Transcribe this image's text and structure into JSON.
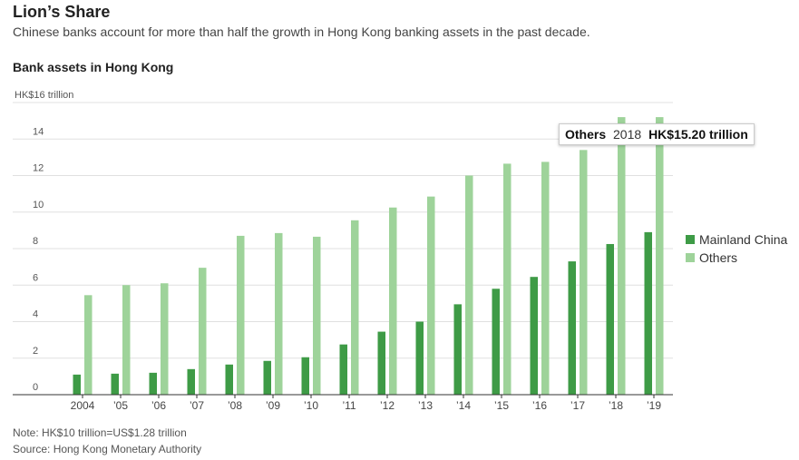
{
  "header": {
    "title": "Lion’s Share",
    "subtitle": "Chinese banks account for more than half the growth in Hong Kong banking assets in the past decade.",
    "chart_label": "Bank assets in Hong Kong"
  },
  "footer": {
    "note": "Note: HK$10 trillion=US$1.28 trillion",
    "source": "Source: Hong Kong Monetary Authority"
  },
  "tooltip": {
    "series": "Others",
    "year": "2018",
    "value": "HK$15.20 trillion"
  },
  "colors": {
    "mainland": "#3e9b46",
    "others": "#9ed39a",
    "grid": "#e0e0e0",
    "axis": "#333333"
  },
  "chart_data": {
    "type": "bar",
    "ylabel": "HK$16 trillion",
    "ylim": [
      0,
      16
    ],
    "yticks": [
      0,
      2,
      4,
      6,
      8,
      10,
      12,
      14
    ],
    "categories": [
      "2004",
      "’05",
      "’06",
      "’07",
      "’08",
      "’09",
      "’10",
      "’11",
      "’12",
      "’13",
      "’14",
      "’15",
      "’16",
      "’17",
      "’18",
      "’19"
    ],
    "series": [
      {
        "name": "Mainland China",
        "color": "#3e9b46",
        "values": [
          1.1,
          1.15,
          1.2,
          1.4,
          1.65,
          1.85,
          2.05,
          2.75,
          3.45,
          4.0,
          4.95,
          5.8,
          6.45,
          7.3,
          8.25,
          8.9
        ]
      },
      {
        "name": "Others",
        "color": "#9ed39a",
        "values": [
          5.45,
          6.0,
          6.1,
          6.95,
          8.7,
          8.85,
          8.65,
          9.55,
          10.25,
          10.85,
          12.0,
          12.65,
          12.75,
          13.4,
          15.2,
          15.2
        ]
      }
    ],
    "legend": "right",
    "grid": true
  }
}
